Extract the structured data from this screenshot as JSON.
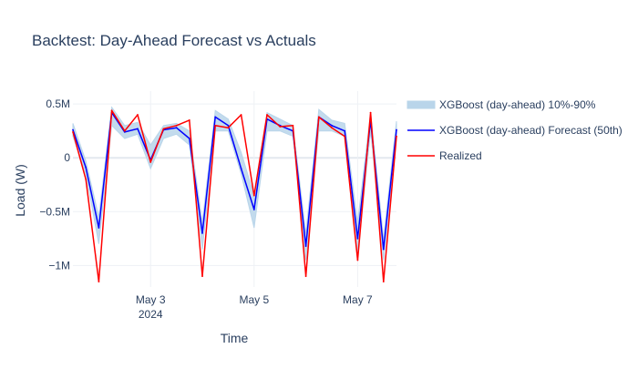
{
  "chart_data": {
    "type": "line",
    "title": "Backtest: Day-Ahead Forecast vs Actuals",
    "xlabel": "Time",
    "ylabel": "Load (W)",
    "x_range": [
      "2024-05-01 12:00",
      "2024-05-07 18:00"
    ],
    "ylim": [
      -1200000,
      620000
    ],
    "y_ticks": [
      {
        "value": 500000,
        "label": "0.5M"
      },
      {
        "value": 0,
        "label": "0"
      },
      {
        "value": -500000,
        "label": "−0.5M"
      },
      {
        "value": -1000000,
        "label": "−1M"
      }
    ],
    "x_ticks": [
      {
        "value": "2024-05-03 00:00",
        "label": "May 3",
        "sublabel": "2024"
      },
      {
        "value": "2024-05-05 00:00",
        "label": "May 5",
        "sublabel": ""
      },
      {
        "value": "2024-05-07 00:00",
        "label": "May 7",
        "sublabel": ""
      }
    ],
    "grid": true,
    "legend_position": "right",
    "series": [
      {
        "name": "XGBoost (day-ahead) 10%-90%",
        "kind": "band",
        "color": "#b9d5ea",
        "x": [
          "2024-05-01 12:00",
          "2024-05-01 18:00",
          "2024-05-02 00:00",
          "2024-05-02 06:00",
          "2024-05-02 12:00",
          "2024-05-02 18:00",
          "2024-05-03 00:00",
          "2024-05-03 06:00",
          "2024-05-03 12:00",
          "2024-05-03 18:00",
          "2024-05-04 00:00",
          "2024-05-04 06:00",
          "2024-05-04 12:00",
          "2024-05-04 18:00",
          "2024-05-05 00:00",
          "2024-05-05 06:00",
          "2024-05-05 12:00",
          "2024-05-05 18:00",
          "2024-05-06 00:00",
          "2024-05-06 06:00",
          "2024-05-06 12:00",
          "2024-05-06 18:00",
          "2024-05-07 00:00",
          "2024-05-07 06:00",
          "2024-05-07 12:00",
          "2024-05-07 18:00"
        ],
        "lower": [
          200000,
          -150000,
          -800000,
          300000,
          180000,
          220000,
          -100000,
          180000,
          220000,
          120000,
          -850000,
          250000,
          250000,
          -150000,
          -650000,
          250000,
          250000,
          200000,
          -950000,
          250000,
          250000,
          200000,
          -900000,
          250000,
          -950000,
          200000
        ],
        "upper": [
          320000,
          -30000,
          -550000,
          470000,
          300000,
          330000,
          120000,
          300000,
          320000,
          250000,
          -600000,
          440000,
          360000,
          50000,
          -350000,
          420000,
          360000,
          300000,
          -700000,
          450000,
          350000,
          320000,
          -600000,
          420000,
          -750000,
          340000
        ]
      },
      {
        "name": "XGBoost (day-ahead) Forecast (50th)",
        "kind": "line",
        "color": "#0000ff",
        "x": [
          "2024-05-01 12:00",
          "2024-05-01 18:00",
          "2024-05-02 00:00",
          "2024-05-02 06:00",
          "2024-05-02 12:00",
          "2024-05-02 18:00",
          "2024-05-03 00:00",
          "2024-05-03 06:00",
          "2024-05-03 12:00",
          "2024-05-03 18:00",
          "2024-05-04 00:00",
          "2024-05-04 06:00",
          "2024-05-04 12:00",
          "2024-05-04 18:00",
          "2024-05-05 00:00",
          "2024-05-05 06:00",
          "2024-05-05 12:00",
          "2024-05-05 18:00",
          "2024-05-06 00:00",
          "2024-05-06 06:00",
          "2024-05-06 12:00",
          "2024-05-06 18:00",
          "2024-05-07 00:00",
          "2024-05-07 06:00",
          "2024-05-07 12:00",
          "2024-05-07 18:00"
        ],
        "values": [
          260000,
          -90000,
          -650000,
          420000,
          240000,
          270000,
          -20000,
          260000,
          280000,
          180000,
          -700000,
          380000,
          300000,
          -100000,
          -480000,
          360000,
          300000,
          250000,
          -820000,
          380000,
          300000,
          250000,
          -750000,
          350000,
          -850000,
          260000
        ]
      },
      {
        "name": "Realized",
        "kind": "line",
        "color": "#ff0000",
        "x": [
          "2024-05-01 12:00",
          "2024-05-01 18:00",
          "2024-05-02 00:00",
          "2024-05-02 06:00",
          "2024-05-02 12:00",
          "2024-05-02 18:00",
          "2024-05-03 00:00",
          "2024-05-03 06:00",
          "2024-05-03 12:00",
          "2024-05-03 18:00",
          "2024-05-04 00:00",
          "2024-05-04 06:00",
          "2024-05-04 12:00",
          "2024-05-04 18:00",
          "2024-05-05 00:00",
          "2024-05-05 06:00",
          "2024-05-05 12:00",
          "2024-05-05 18:00",
          "2024-05-06 00:00",
          "2024-05-06 06:00",
          "2024-05-06 12:00",
          "2024-05-06 18:00",
          "2024-05-07 00:00",
          "2024-05-07 06:00",
          "2024-05-07 12:00",
          "2024-05-07 18:00"
        ],
        "values": [
          240000,
          -200000,
          -1150000,
          440000,
          250000,
          400000,
          -40000,
          270000,
          300000,
          350000,
          -1100000,
          300000,
          280000,
          400000,
          -350000,
          400000,
          290000,
          300000,
          -1100000,
          380000,
          280000,
          200000,
          -950000,
          420000,
          -1150000,
          200000
        ]
      }
    ]
  }
}
